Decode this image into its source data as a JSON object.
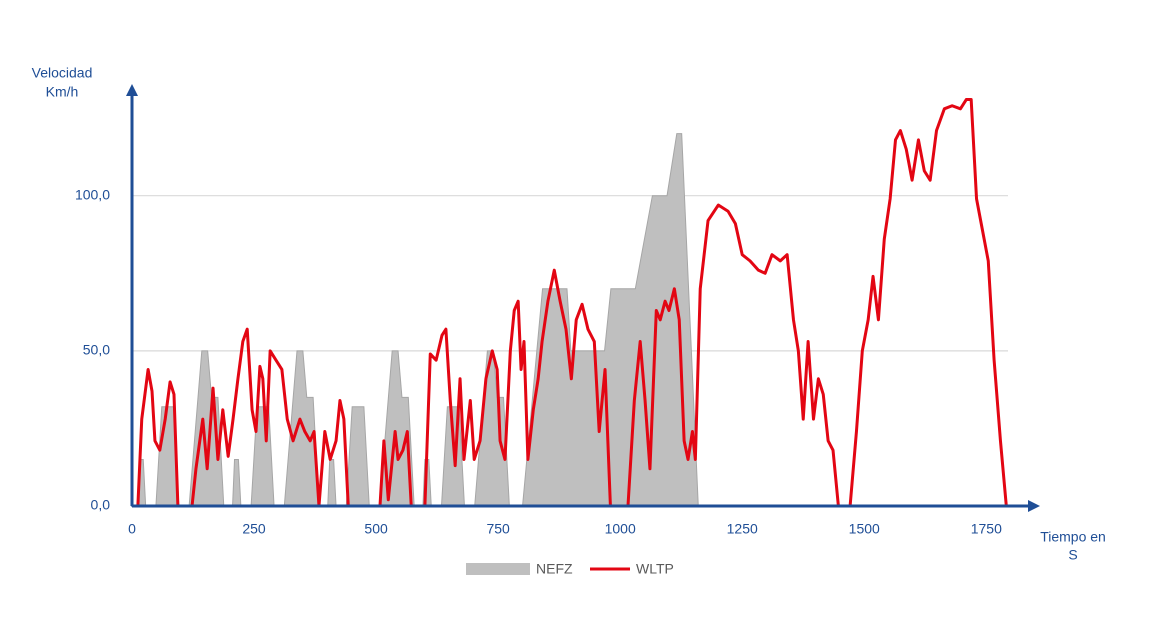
{
  "chart_data": {
    "type": "line",
    "ylabel": [
      "Velocidad",
      "Km/h"
    ],
    "xlabel": [
      "Tiempo en",
      "S"
    ],
    "xlim": [
      0,
      1860
    ],
    "ylim": [
      0,
      136
    ],
    "xticks": [
      0,
      250,
      500,
      750,
      1000,
      1250,
      1500,
      1750
    ],
    "yticks": [
      {
        "value": 0,
        "label": "0,0"
      },
      {
        "value": 50,
        "label": "50,0"
      },
      {
        "value": 100,
        "label": "100,0"
      }
    ],
    "grid": true,
    "axis_color": "#1f4e96",
    "series": [
      {
        "name": "NEFZ",
        "type": "area",
        "color": "#bfbfbf",
        "x": [
          0,
          11,
          15,
          23,
          28,
          49,
          61,
          85,
          96,
          117,
          143,
          155,
          163,
          176,
          188,
          195,
          206,
          210,
          218,
          223,
          244,
          256,
          280,
          291,
          312,
          338,
          350,
          358,
          371,
          383,
          390,
          401,
          405,
          413,
          418,
          439,
          451,
          475,
          486,
          507,
          533,
          545,
          553,
          566,
          578,
          585,
          596,
          600,
          608,
          613,
          634,
          646,
          670,
          681,
          702,
          728,
          740,
          748,
          761,
          773,
          780,
          800,
          841,
          891,
          899,
          968,
          981,
          1031,
          1066,
          1096,
          1116,
          1126,
          1160,
          1180
        ],
        "values": [
          0,
          0,
          15,
          15,
          0,
          0,
          32,
          32,
          0,
          0,
          50,
          50,
          35,
          35,
          0,
          0,
          0,
          15,
          15,
          0,
          0,
          32,
          32,
          0,
          0,
          50,
          50,
          35,
          35,
          0,
          0,
          0,
          15,
          15,
          0,
          0,
          32,
          32,
          0,
          0,
          50,
          50,
          35,
          35,
          0,
          0,
          0,
          15,
          15,
          0,
          0,
          32,
          32,
          0,
          0,
          50,
          50,
          35,
          35,
          0,
          0,
          0,
          70,
          70,
          50,
          50,
          70,
          70,
          100,
          100,
          120,
          120,
          0,
          0
        ]
      },
      {
        "name": "WLTP",
        "type": "line",
        "color": "#e30613",
        "x": [
          0,
          12,
          20,
          33,
          41,
          47,
          57,
          68,
          78,
          86,
          94,
          123,
          131,
          145,
          154,
          166,
          176,
          186,
          197,
          207,
          217,
          227,
          236,
          246,
          254,
          262,
          268,
          275,
          283,
          295,
          307,
          318,
          330,
          344,
          354,
          365,
          373,
          383,
          395,
          406,
          418,
          426,
          434,
          443,
          508,
          516,
          525,
          539,
          545,
          555,
          564,
          572,
          600,
          611,
          623,
          635,
          643,
          652,
          662,
          672,
          680,
          693,
          701,
          713,
          725,
          738,
          748,
          754,
          764,
          775,
          783,
          791,
          797,
          803,
          811,
          822,
          832,
          840,
          852,
          865,
          877,
          889,
          900,
          910,
          922,
          934,
          947,
          957,
          969,
          980,
          1016,
          1029,
          1041,
          1051,
          1061,
          1074,
          1082,
          1092,
          1100,
          1111,
          1121,
          1131,
          1139,
          1148,
          1154,
          1164,
          1180,
          1201,
          1221,
          1236,
          1250,
          1266,
          1283,
          1297,
          1311,
          1328,
          1342,
          1355,
          1365,
          1375,
          1385,
          1396,
          1406,
          1416,
          1426,
          1436,
          1447,
          1471,
          1484,
          1496,
          1508,
          1518,
          1529,
          1541,
          1553,
          1564,
          1574,
          1586,
          1598,
          1611,
          1623,
          1635,
          1648,
          1664,
          1680,
          1697,
          1709,
          1719,
          1730,
          1742,
          1754,
          1766,
          1779,
          1791,
          1800
        ],
        "values": [
          0,
          0,
          28,
          44,
          37,
          21,
          18,
          28,
          40,
          36,
          0,
          0,
          12,
          28,
          12,
          38,
          15,
          31,
          16,
          28,
          41,
          53,
          57,
          31,
          24,
          45,
          41,
          21,
          50,
          47,
          44,
          28,
          21,
          28,
          24,
          21,
          24,
          0,
          24,
          15,
          21,
          34,
          28,
          0,
          0,
          21,
          2,
          24,
          15,
          18,
          24,
          0,
          0,
          49,
          47,
          55,
          57,
          34,
          13,
          41,
          15,
          34,
          15,
          21,
          41,
          50,
          44,
          21,
          15,
          50,
          63,
          66,
          44,
          53,
          15,
          31,
          41,
          53,
          66,
          76,
          66,
          57,
          41,
          60,
          65,
          57,
          53,
          24,
          44,
          0,
          0,
          34,
          53,
          34,
          12,
          63,
          60,
          66,
          63,
          70,
          60,
          21,
          15,
          24,
          15,
          70,
          92,
          97,
          95,
          91,
          81,
          79,
          76,
          75,
          81,
          79,
          81,
          60,
          50,
          28,
          53,
          28,
          41,
          36,
          21,
          18,
          0,
          0,
          24,
          50,
          60,
          74,
          60,
          86,
          99,
          118,
          121,
          115,
          105,
          118,
          108,
          105,
          121,
          128,
          129,
          128,
          131,
          131,
          99,
          89,
          79,
          47,
          21,
          0,
          0
        ]
      }
    ]
  }
}
